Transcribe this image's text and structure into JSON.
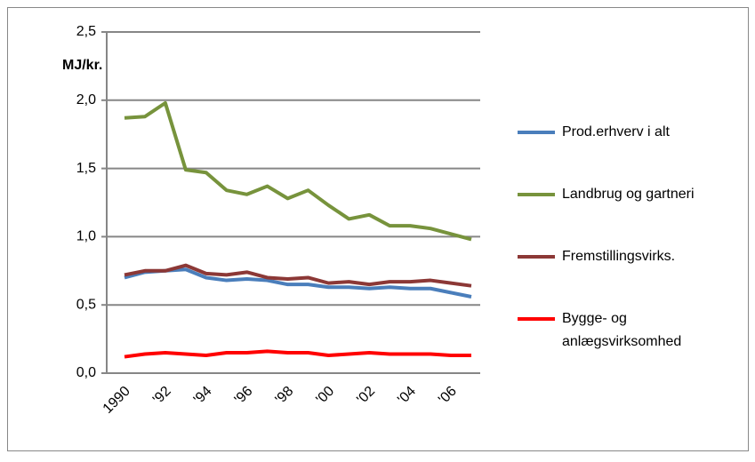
{
  "chart_data": {
    "type": "line",
    "y_label": "MJ/kr.",
    "categories": [
      "1990",
      null,
      "'92",
      null,
      "'94",
      null,
      "'96",
      null,
      "'98",
      null,
      "'00",
      null,
      "'02",
      null,
      "'04",
      null,
      "'06",
      null
    ],
    "series": [
      {
        "name": "Prod.erhverv i alt",
        "color": "#4a7ebb",
        "values": [
          0.7,
          0.74,
          0.75,
          0.76,
          0.7,
          0.68,
          0.69,
          0.68,
          0.65,
          0.65,
          0.63,
          0.63,
          0.62,
          0.63,
          0.62,
          0.62,
          0.59,
          0.56
        ]
      },
      {
        "name": "Landbrug og gartneri",
        "color": "#77933c",
        "values": [
          1.87,
          1.88,
          1.98,
          1.49,
          1.47,
          1.34,
          1.31,
          1.37,
          1.28,
          1.34,
          1.23,
          1.13,
          1.16,
          1.08,
          1.08,
          1.06,
          1.02,
          0.98
        ]
      },
      {
        "name": "Fremstillingsvirks.",
        "color": "#8c3836",
        "values": [
          0.72,
          0.75,
          0.75,
          0.79,
          0.73,
          0.72,
          0.74,
          0.7,
          0.69,
          0.7,
          0.66,
          0.67,
          0.65,
          0.67,
          0.67,
          0.68,
          0.66,
          0.64
        ]
      },
      {
        "name": "Bygge- og anlægsvirksomhed",
        "color": "#ff0000",
        "values": [
          0.12,
          0.14,
          0.15,
          0.14,
          0.13,
          0.15,
          0.15,
          0.16,
          0.15,
          0.15,
          0.13,
          0.14,
          0.15,
          0.14,
          0.14,
          0.14,
          0.13,
          0.13
        ]
      }
    ],
    "ylim": [
      0,
      2.5
    ],
    "yticks": [
      {
        "value": 0,
        "label": "0,0"
      },
      {
        "value": 0.5,
        "label": "0,5"
      },
      {
        "value": 1,
        "label": "1,0"
      },
      {
        "value": 1.5,
        "label": "1,5"
      },
      {
        "value": 2,
        "label": "2,0"
      },
      {
        "value": 2.5,
        "label": "2,5"
      }
    ],
    "grid": true,
    "legend": "right"
  }
}
